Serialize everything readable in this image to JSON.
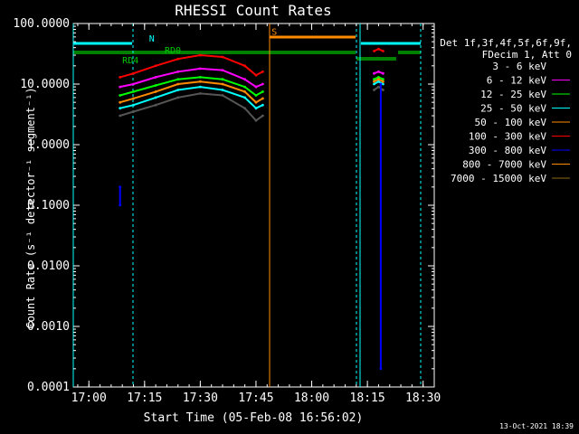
{
  "chart_data": {
    "type": "line",
    "title": "RHESSI Count Rates",
    "xlabel": "Start Time (05-Feb-08 16:56:02)",
    "ylabel": "Count Rate (s⁻¹ detector⁻¹ segment⁻¹)",
    "yscale": "log",
    "ylim": [
      0.0001,
      100.0
    ],
    "xlim_minutes": [
      16.93,
      18.55
    ],
    "x_unit": "hours (16.93 = 16:56)",
    "x_ticks": [
      {
        "value": 17.0,
        "label": "17:00"
      },
      {
        "value": 17.25,
        "label": "17:15"
      },
      {
        "value": 17.5,
        "label": "17:30"
      },
      {
        "value": 17.75,
        "label": "17:45"
      },
      {
        "value": 18.0,
        "label": "18:00"
      },
      {
        "value": 18.25,
        "label": "18:15"
      },
      {
        "value": 18.5,
        "label": "18:30"
      }
    ],
    "y_ticks": [
      {
        "value": 100.0,
        "label": "100.0000"
      },
      {
        "value": 10.0,
        "label": "10.0000"
      },
      {
        "value": 1.0,
        "label": "1.0000"
      },
      {
        "value": 0.1,
        "label": "0.1000"
      },
      {
        "value": 0.01,
        "label": "0.0100"
      },
      {
        "value": 0.001,
        "label": "0.0010"
      },
      {
        "value": 0.0001,
        "label": "0.0001"
      }
    ],
    "legend": {
      "placement": "right",
      "header": [
        "Det 1f,3f,4f,5f,6f,9f,",
        "FDecim 1, Att 0"
      ],
      "entries": [
        {
          "label": "3 - 6 keV",
          "color": "#000000"
        },
        {
          "label": "6 - 12 keV",
          "color": "#ff00ff"
        },
        {
          "label": "12 - 25 keV",
          "color": "#00ff00"
        },
        {
          "label": "25 - 50 keV",
          "color": "#00ffff"
        },
        {
          "label": "50 - 100 keV",
          "color": "#ff8c00"
        },
        {
          "label": "100 - 300 keV",
          "color": "#ff0000"
        },
        {
          "label": "300 - 800 keV",
          "color": "#0000ff"
        },
        {
          "label": "800 - 7000 keV",
          "color": "#ff8c00"
        },
        {
          "label": "7000 - 15000 keV",
          "color": "#8b6914"
        }
      ]
    },
    "series": [
      {
        "name": "3 - 6 keV",
        "color": "#000000",
        "segments": [
          {
            "x": [
              17.14,
              17.2,
              17.3,
              17.4,
              17.5,
              17.6,
              17.7,
              17.75,
              17.78
            ],
            "y": [
              3.0,
              3.5,
              4.5,
              6.0,
              7.0,
              6.5,
              4.0,
              2.5,
              3.0
            ]
          },
          {
            "x": [
              18.28,
              18.3,
              18.32
            ],
            "y": [
              8.0,
              9.0,
              8.0
            ]
          }
        ]
      },
      {
        "name": "6 - 12 keV",
        "color": "#ff00ff",
        "segments": [
          {
            "x": [
              17.14,
              17.2,
              17.3,
              17.4,
              17.5,
              17.6,
              17.7,
              17.75,
              17.78
            ],
            "y": [
              9.0,
              10.0,
              13.0,
              16.0,
              18.0,
              17.0,
              12.0,
              9.0,
              10.0
            ]
          },
          {
            "x": [
              18.28,
              18.3,
              18.32
            ],
            "y": [
              15.0,
              16.0,
              15.0
            ]
          }
        ]
      },
      {
        "name": "12 - 25 keV",
        "color": "#00ff00",
        "segments": [
          {
            "x": [
              17.14,
              17.2,
              17.3,
              17.4,
              17.5,
              17.6,
              17.7,
              17.75,
              17.78
            ],
            "y": [
              6.5,
              7.5,
              9.5,
              12.0,
              13.0,
              12.0,
              9.0,
              6.5,
              7.5
            ]
          },
          {
            "x": [
              18.28,
              18.3,
              18.32
            ],
            "y": [
              12.0,
              13.0,
              12.0
            ]
          }
        ]
      },
      {
        "name": "25 - 50 keV",
        "color": "#00ffff",
        "segments": [
          {
            "x": [
              17.14,
              17.2,
              17.3,
              17.4,
              17.5,
              17.6,
              17.7,
              17.75,
              17.78
            ],
            "y": [
              4.0,
              4.5,
              6.0,
              8.0,
              9.0,
              8.0,
              6.0,
              4.0,
              4.5
            ]
          },
          {
            "x": [
              18.28,
              18.3,
              18.32
            ],
            "y": [
              10.0,
              11.0,
              10.0
            ]
          }
        ]
      },
      {
        "name": "50 - 100 keV",
        "color": "#ff8c00",
        "segments": [
          {
            "x": [
              17.14,
              17.2,
              17.3,
              17.4,
              17.5,
              17.6,
              17.7,
              17.75,
              17.78
            ],
            "y": [
              5.0,
              5.8,
              7.5,
              10.0,
              11.0,
              10.0,
              7.5,
              5.0,
              5.8
            ]
          },
          {
            "x": [
              18.28,
              18.3,
              18.32
            ],
            "y": [
              11.0,
              12.0,
              11.0
            ]
          }
        ]
      },
      {
        "name": "100 - 300 keV",
        "color": "#ff0000",
        "segments": [
          {
            "x": [
              17.14,
              17.2,
              17.3,
              17.4,
              17.5,
              17.6,
              17.7,
              17.75,
              17.78
            ],
            "y": [
              13.0,
              15.0,
              20.0,
              26.0,
              30.0,
              28.0,
              20.0,
              14.0,
              16.0
            ]
          },
          {
            "x": [
              18.28,
              18.3,
              18.32
            ],
            "y": [
              35.0,
              38.0,
              35.0
            ]
          }
        ]
      },
      {
        "name": "300 - 800 keV",
        "color": "#0000ff",
        "segments": [
          {
            "x": [
              17.14,
              17.14
            ],
            "y": [
              0.1,
              0.2
            ]
          },
          {
            "x": [
              18.31,
              18.31
            ],
            "y": [
              0.0002,
              10.0
            ]
          }
        ]
      }
    ],
    "annotations": [
      {
        "label": "N",
        "color": "#00ffff",
        "x": 17.27,
        "y": 50.0
      },
      {
        "label": "RD4",
        "color": "#00cc00",
        "x": 17.15,
        "y": 22.0
      },
      {
        "label": "RD0",
        "color": "#00cc00",
        "x": 17.34,
        "y": 32.0
      },
      {
        "label": "S",
        "color": "#ff8c00",
        "x": 17.82,
        "y": 65.0
      }
    ],
    "timestamp": "13-Oct-2021 18:39"
  }
}
